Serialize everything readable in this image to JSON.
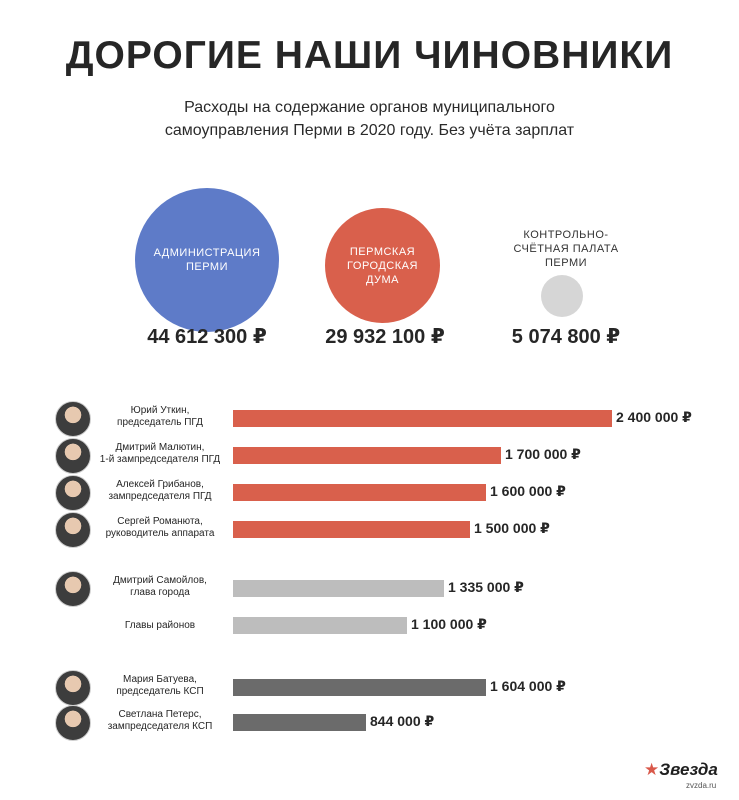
{
  "title": "ДОРОГИЕ НАШИ ЧИНОВНИКИ",
  "subtitle_line1": "Расходы на содержание органов муниципального",
  "subtitle_line2": "самоуправления Перми в 2020 году. Без учёта зарплат",
  "colors": {
    "blue": "#5e7bc8",
    "red": "#d9604c",
    "light_gray": "#bdbdbd",
    "dark_gray": "#6b6b6b",
    "bubble_gray": "#d6d6d6"
  },
  "bodies": [
    {
      "label_line1": "АДМИНИСТРАЦИЯ",
      "label_line2": "ПЕРМИ",
      "label_line3": "",
      "total": "44 612 300 ₽"
    },
    {
      "label_line1": "ПЕРМСКАЯ",
      "label_line2": "ГОРОДСКАЯ",
      "label_line3": "ДУМА",
      "total": "29 932 100 ₽"
    },
    {
      "label_line1": "КОНТРОЛЬНО-",
      "label_line2": "СЧЁТНАЯ ПАЛАТА",
      "label_line3": "ПЕРМИ",
      "total": "5 074 800 ₽"
    }
  ],
  "chart_data": {
    "type": "bar",
    "orientation": "horizontal",
    "unit": "₽",
    "categories": [
      "Юрий Уткин, председатель ПГД",
      "Дмитрий Малютин, 1-й зампредседателя ПГД",
      "Алексей Грибанов, зампредседателя ПГД",
      "Сергей Романюта, руководитель аппарата",
      "Дмитрий Самойлов, глава города",
      "Главы районов",
      "Мария Батуева, председатель КСП",
      "Светлана Петерс, зампредседателя КСП"
    ],
    "values": [
      2400000,
      1700000,
      1600000,
      1500000,
      1335000,
      1100000,
      1604000,
      844000
    ],
    "value_labels": [
      "2 400 000 ₽",
      "1 700 000 ₽",
      "1 600 000 ₽",
      "1 500 000 ₽",
      "1 335 000 ₽",
      "1 100 000 ₽",
      "1 604 000 ₽",
      "844 000 ₽"
    ],
    "bubble_values": [
      44612300,
      29932100,
      5074800
    ]
  },
  "people": [
    {
      "line1": "Юрий Уткин,",
      "line2": "председатель ПГД",
      "avatar": true
    },
    {
      "line1": "Дмитрий Малютин,",
      "line2": "1-й зампредседателя ПГД",
      "avatar": true
    },
    {
      "line1": "Алексей Грибанов,",
      "line2": "зампредседателя ПГД",
      "avatar": true
    },
    {
      "line1": "Сергей Романюта,",
      "line2": "руководитель аппарата",
      "avatar": true
    },
    {
      "line1": "Дмитрий Самойлов,",
      "line2": "глава города",
      "avatar": true
    },
    {
      "line1": "Главы районов",
      "line2": "",
      "avatar": false
    },
    {
      "line1": "Мария Батуева,",
      "line2": "председатель КСП",
      "avatar": true
    },
    {
      "line1": "Светлана Петерс,",
      "line2": "зампредседателя КСП",
      "avatar": true
    }
  ],
  "logo": {
    "name": "Звезда",
    "site": "zvzda.ru",
    "icon": "star-icon"
  }
}
